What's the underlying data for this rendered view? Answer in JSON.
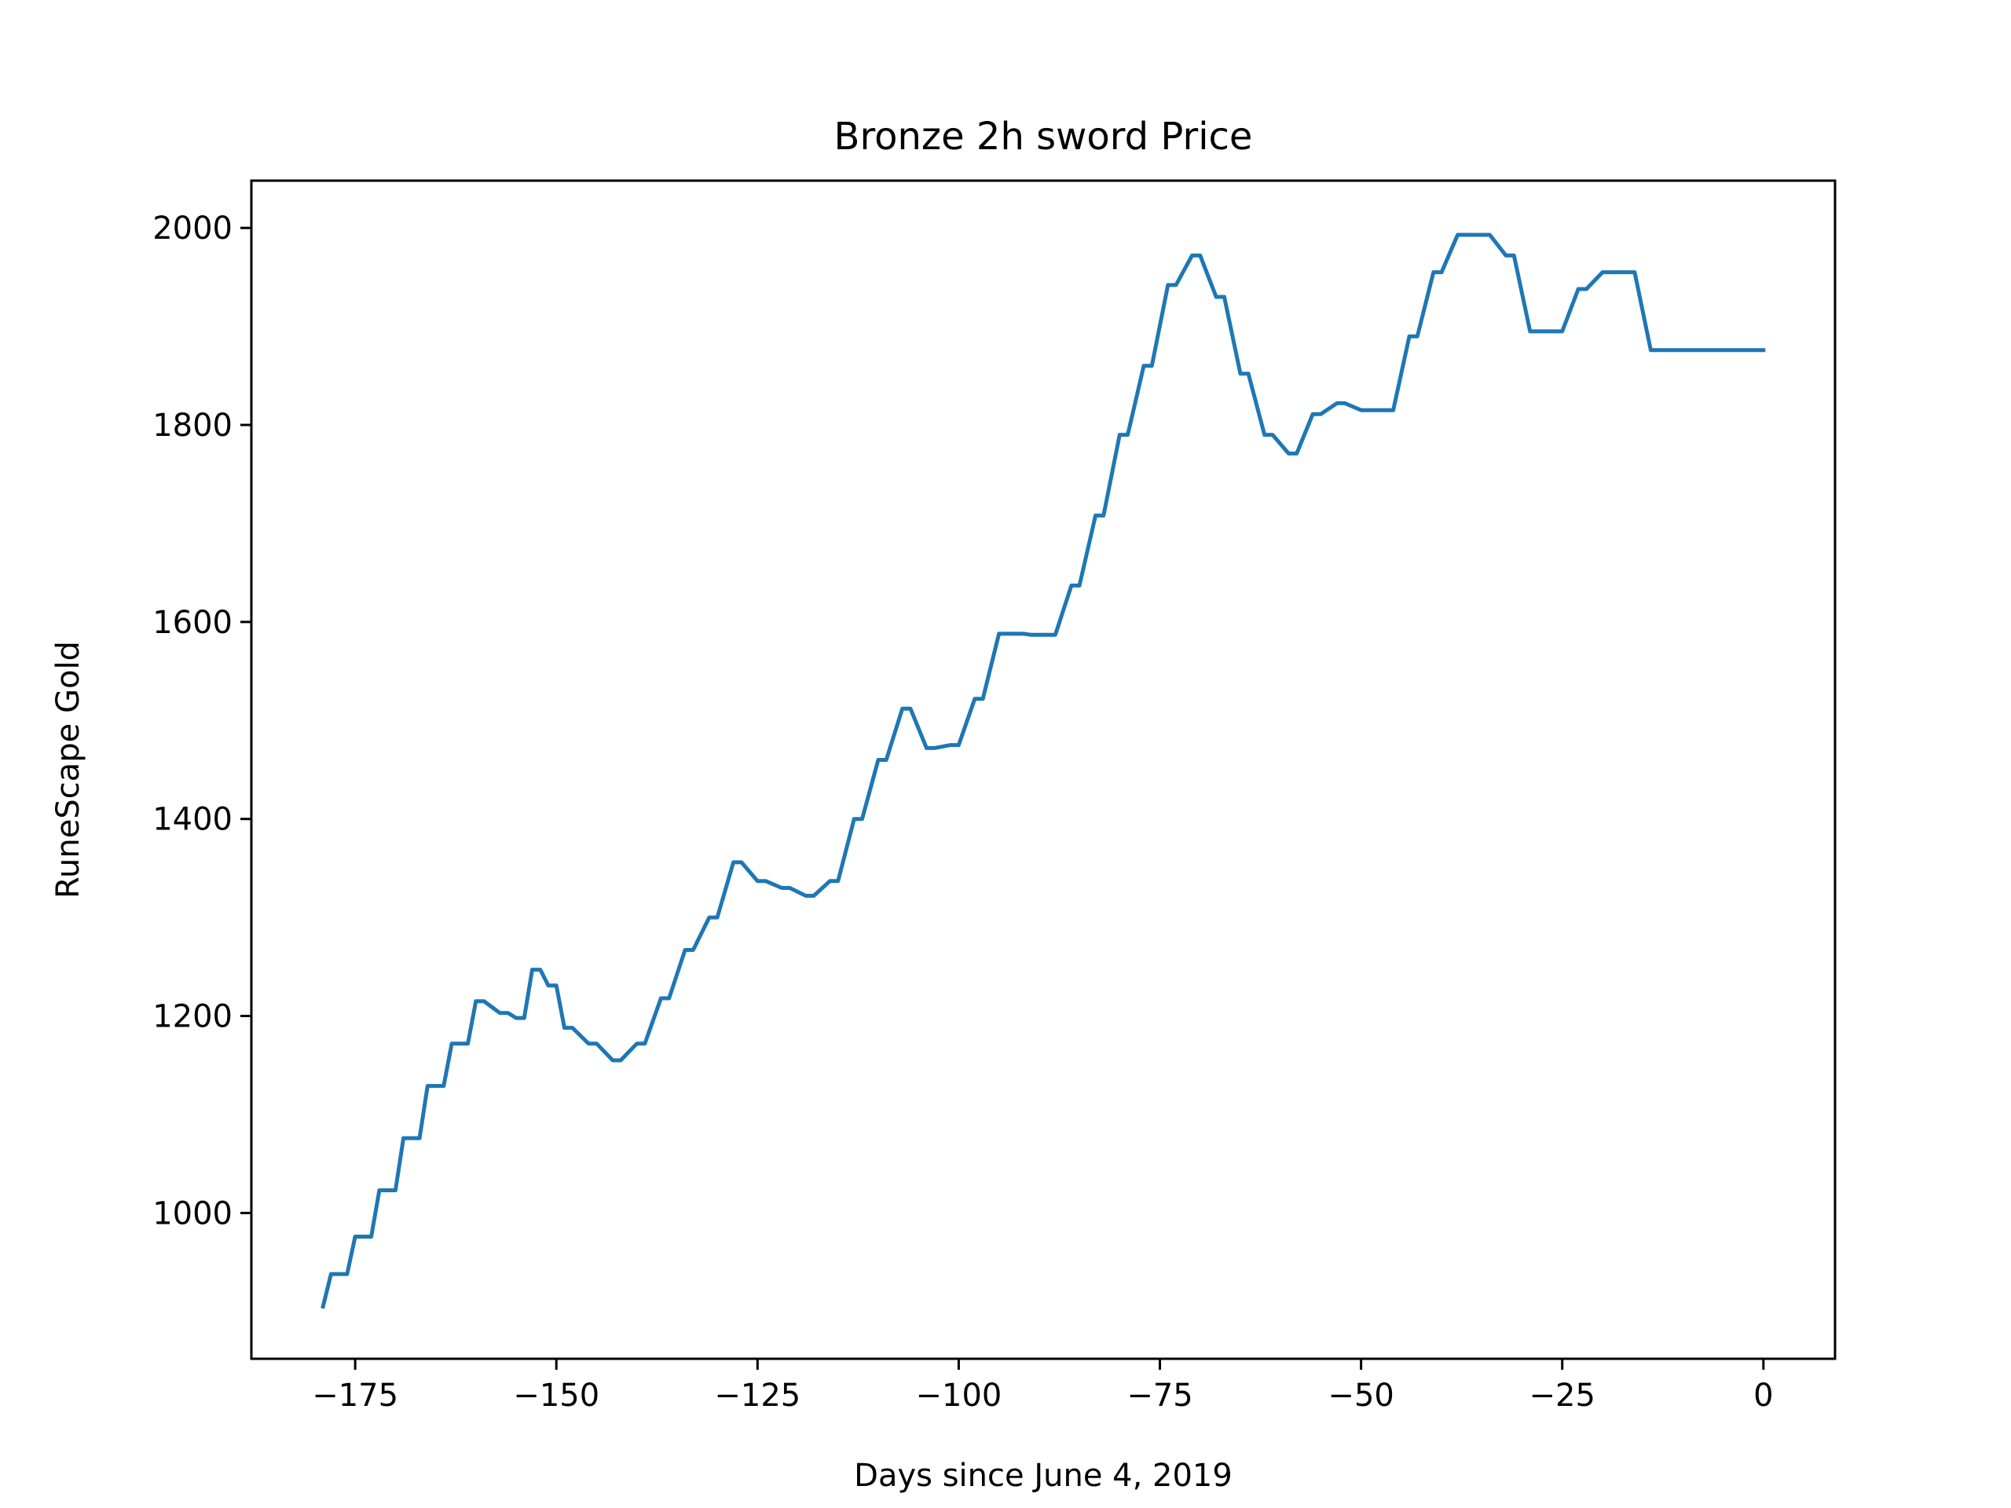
{
  "chart_data": {
    "type": "line",
    "title": "Bronze 2h sword Price",
    "xlabel": "Days since June 4, 2019",
    "ylabel": "RuneScape Gold",
    "xlim": [
      -187.9,
      8.9
    ],
    "ylim": [
      852,
      2048
    ],
    "xticks": [
      -175,
      -150,
      -125,
      -100,
      -75,
      -50,
      -25,
      0
    ],
    "xtick_labels": [
      "−175",
      "−150",
      "−125",
      "−100",
      "−75",
      "−50",
      "−25",
      "0"
    ],
    "yticks": [
      1000,
      1200,
      1400,
      1600,
      1800,
      2000
    ],
    "ytick_labels": [
      "1000",
      "1200",
      "1400",
      "1600",
      "1800",
      "2000"
    ],
    "grid": false,
    "series": [
      {
        "name": "",
        "color": "#1f77b4",
        "x": [
          -179,
          -178,
          -176,
          -175,
          -173,
          -172,
          -170,
          -169,
          -167,
          -166,
          -164,
          -163,
          -161,
          -160,
          -159,
          -157,
          -156,
          -155,
          -154,
          -153,
          -152,
          -151,
          -150,
          -149,
          -148,
          -146,
          -145,
          -143,
          -142,
          -140,
          -139,
          -137,
          -136,
          -134,
          -133,
          -131,
          -130,
          -128,
          -127,
          -125,
          -124,
          -122,
          -121,
          -119,
          -118,
          -116,
          -115,
          -113,
          -112,
          -110,
          -109,
          -107,
          -106,
          -104,
          -103,
          -101,
          -100,
          -98,
          -97,
          -95,
          -94,
          -92,
          -91,
          -89,
          -88,
          -86,
          -85,
          -83,
          -82,
          -80,
          -79,
          -77,
          -76,
          -74,
          -73,
          -71,
          -70,
          -68,
          -67,
          -65,
          -64,
          -62,
          -61,
          -59,
          -58,
          -56,
          -55,
          -53,
          -52,
          -50,
          -49,
          -47,
          -46,
          -44,
          -43,
          -41,
          -40,
          -38,
          -37,
          -35,
          -34,
          -32,
          -31,
          -29,
          -28,
          -26,
          -25,
          -23,
          -22,
          -20,
          -19,
          -17,
          -16,
          -14,
          -13,
          -11,
          -10,
          -8,
          -7,
          -5,
          -4,
          -2,
          -1,
          0
        ],
        "y": [
          905,
          938,
          938,
          976,
          976,
          1023,
          1023,
          1076,
          1076,
          1129,
          1129,
          1172,
          1172,
          1215,
          1215,
          1203,
          1203,
          1198,
          1198,
          1247,
          1247,
          1231,
          1231,
          1188,
          1188,
          1172,
          1172,
          1155,
          1155,
          1172,
          1172,
          1218,
          1218,
          1267,
          1267,
          1300,
          1300,
          1356,
          1356,
          1337,
          1337,
          1330,
          1330,
          1322,
          1322,
          1337,
          1337,
          1400,
          1400,
          1460,
          1460,
          1512,
          1512,
          1472,
          1472,
          1475,
          1475,
          1522,
          1522,
          1588,
          1588,
          1588,
          1587,
          1587,
          1587,
          1637,
          1637,
          1708,
          1708,
          1790,
          1790,
          1860,
          1860,
          1942,
          1942,
          1972,
          1972,
          1930,
          1930,
          1852,
          1852,
          1790,
          1790,
          1771,
          1771,
          1811,
          1811,
          1822,
          1822,
          1815,
          1815,
          1815,
          1815,
          1890,
          1890,
          1955,
          1955,
          1993,
          1993,
          1993,
          1993,
          1972,
          1972,
          1895,
          1895,
          1895,
          1895,
          1938,
          1938,
          1955,
          1955,
          1955,
          1955,
          1876,
          1876,
          1876,
          1876,
          1876,
          1876,
          1876,
          1876,
          1876,
          1876,
          1876
        ]
      }
    ]
  }
}
